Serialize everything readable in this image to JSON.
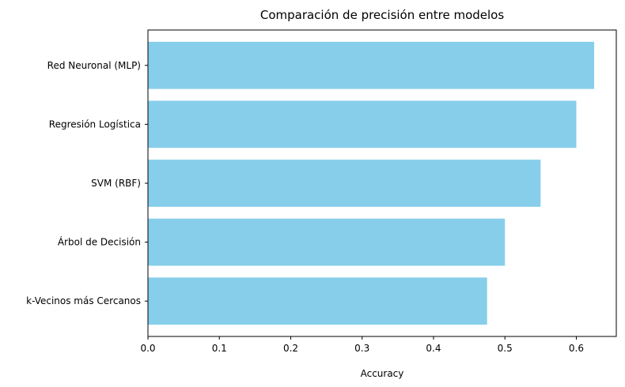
{
  "chart_data": {
    "type": "bar",
    "orientation": "horizontal",
    "title": "Comparación de precisión entre modelos",
    "xlabel": "Accuracy",
    "ylabel": "",
    "categories": [
      "Red Neuronal (MLP)",
      "Regresión Logística",
      "SVM (RBF)",
      "Árbol de Decisión",
      "k-Vecinos más Cercanos"
    ],
    "values": [
      0.625,
      0.6,
      0.55,
      0.5,
      0.475
    ],
    "xlim": [
      0,
      0.656
    ],
    "xticks": [
      0.0,
      0.1,
      0.2,
      0.3,
      0.4,
      0.5,
      0.6
    ],
    "xtick_labels": [
      "0.0",
      "0.1",
      "0.2",
      "0.3",
      "0.4",
      "0.5",
      "0.6"
    ],
    "bar_color": "#87ceeb",
    "grid": false,
    "legend": false
  }
}
